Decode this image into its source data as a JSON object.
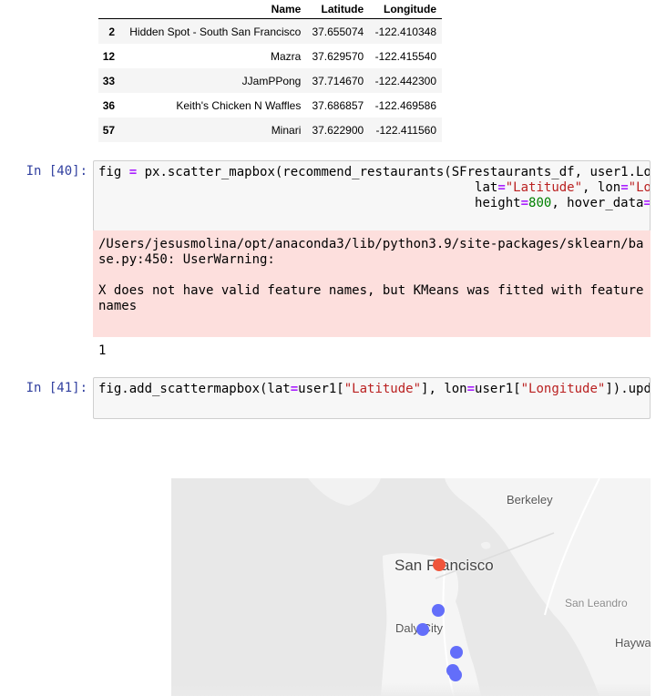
{
  "table": {
    "columns": [
      "",
      "Name",
      "Latitude",
      "Longitude"
    ],
    "rows": [
      {
        "index": "2",
        "name": "Hidden Spot - South San Francisco",
        "latitude": "37.655074",
        "longitude": "-122.410348"
      },
      {
        "index": "12",
        "name": "Mazra",
        "latitude": "37.629570",
        "longitude": "-122.415540"
      },
      {
        "index": "33",
        "name": "JJamPPong",
        "latitude": "37.714670",
        "longitude": "-122.442300"
      },
      {
        "index": "36",
        "name": "Keith's Chicken N Waffles",
        "latitude": "37.686857",
        "longitude": "-122.469586"
      },
      {
        "index": "57",
        "name": "Minari",
        "latitude": "37.622900",
        "longitude": "-122.411560"
      }
    ]
  },
  "cell40": {
    "prompt": "In [40]:",
    "code_line1_a": "fig ",
    "code_line1_op": "=",
    "code_line1_b": " px.scatter_mapbox(recommend_restaurants(SFrestaurants_df, user1.Lo",
    "code_line2_indent": "                                                 ",
    "code_line2_a": "lat",
    "code_line2_op1": "=",
    "code_line2_str1": "\"Latitude\"",
    "code_line2_b": ", lon",
    "code_line2_op2": "=",
    "code_line2_str2": "\"Lon",
    "code_line3_indent": "                                                 ",
    "code_line3_a": "height",
    "code_line3_op": "=",
    "code_line3_num": "800",
    "code_line3_b": ", hover_data",
    "code_line3_op2": "=",
    "code_line3_c": "[",
    "stderr": "/Users/jesusmolina/opt/anaconda3/lib/python3.9/site-packages/sklearn/base.py:450: UserWarning:\n\nX does not have valid feature names, but KMeans was fitted with feature names",
    "output": "1"
  },
  "cell41": {
    "prompt": "In [41]:",
    "code_a": "fig.add_scattermapbox(lat",
    "code_op1": "=",
    "code_b": "user1[",
    "code_str1": "\"Latitude\"",
    "code_c": "], lon",
    "code_op2": "=",
    "code_d": "user1[",
    "code_str2": "\"Longitude\"",
    "code_e": "]).upd"
  },
  "map": {
    "labels": {
      "berkeley": "Berkeley",
      "san_francisco": "San Francisco",
      "san_leandro": "San Leandro",
      "daly_city": "Daly City",
      "hayward": "Haywa"
    },
    "colors": {
      "restaurant_marker": "#636efa",
      "user_marker": "#ef553b",
      "water": "#e8e8e8",
      "land": "#f5f5f5"
    },
    "legend": []
  }
}
